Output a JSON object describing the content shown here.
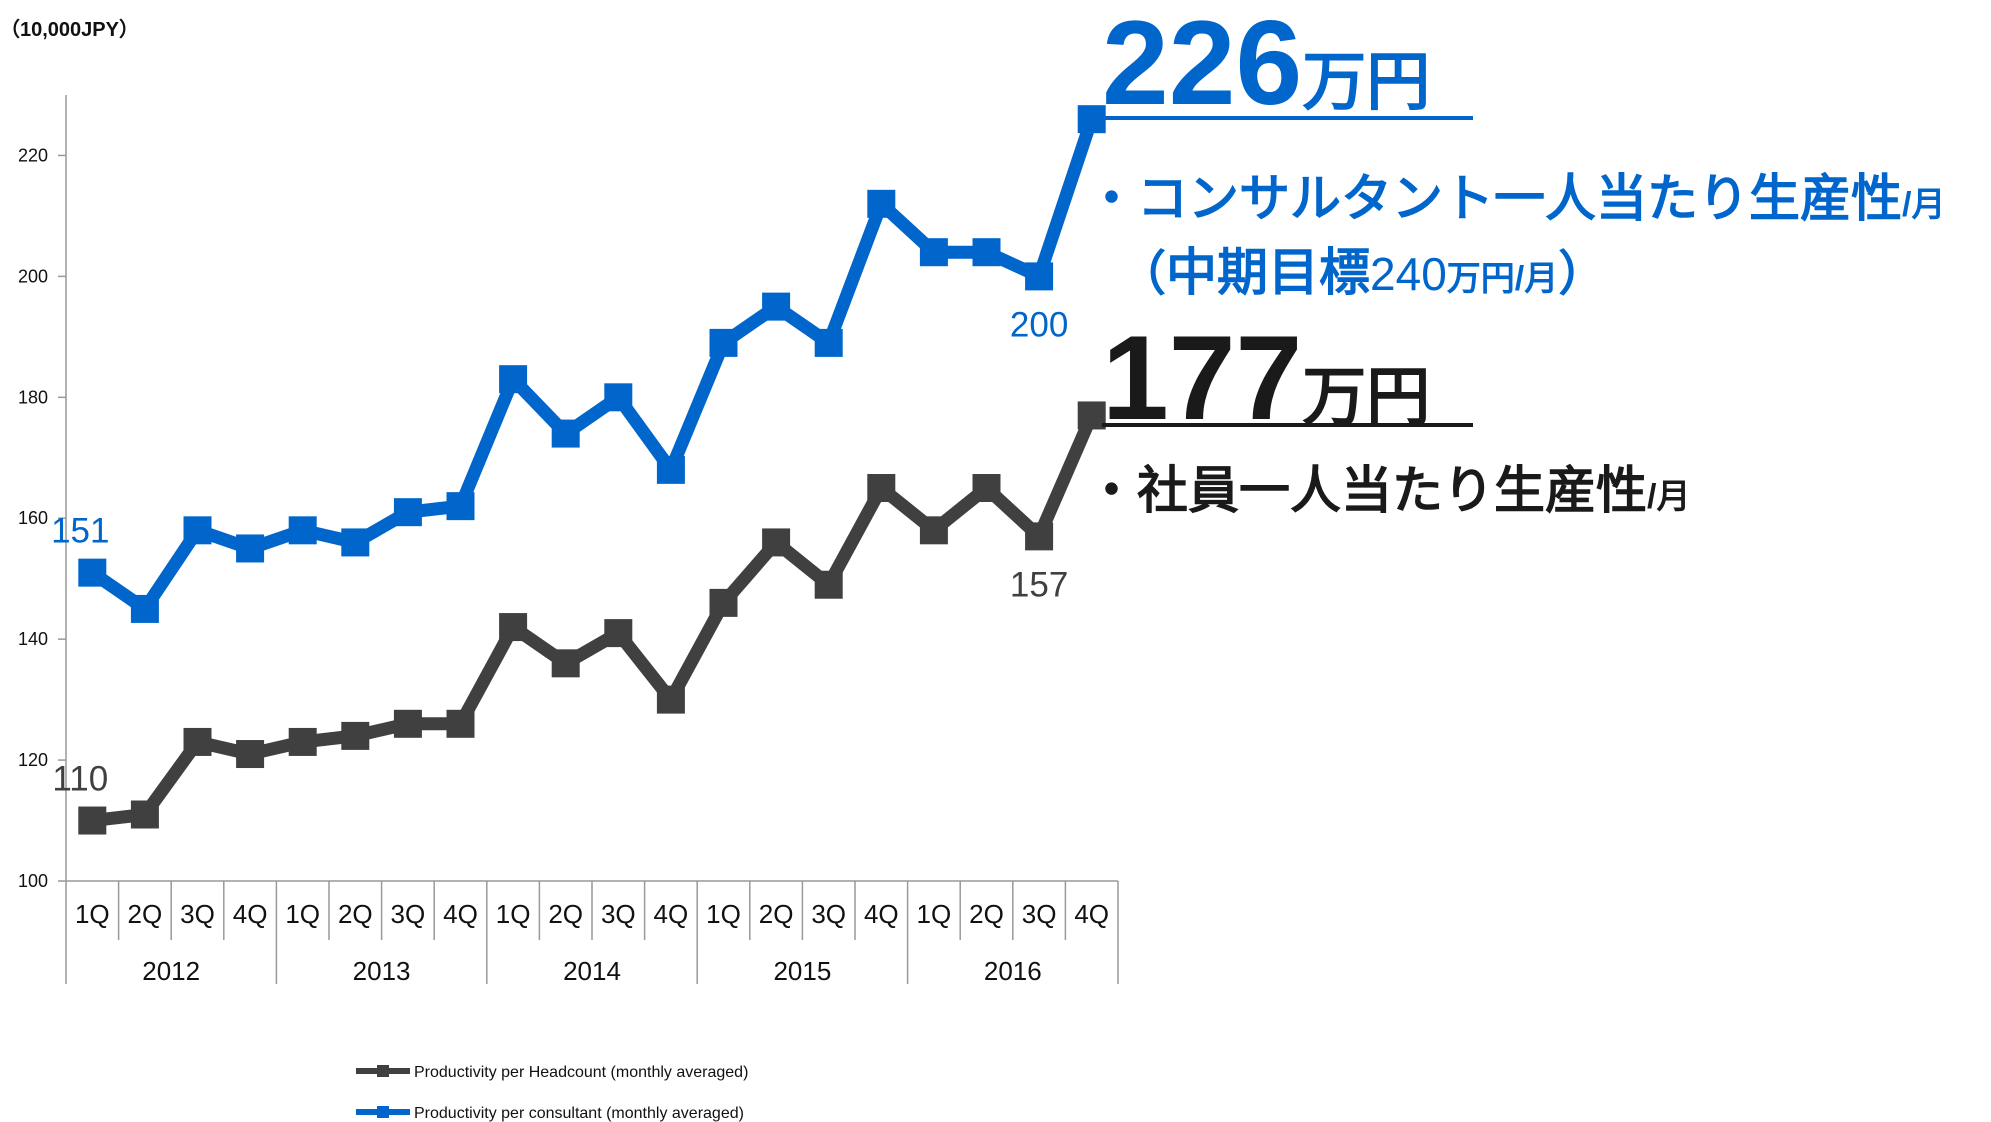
{
  "chart_data": {
    "type": "line",
    "unit_label": "（10,000JPY）",
    "categories": [
      "1Q",
      "2Q",
      "3Q",
      "4Q",
      "1Q",
      "2Q",
      "3Q",
      "4Q",
      "1Q",
      "2Q",
      "3Q",
      "4Q",
      "1Q",
      "2Q",
      "3Q",
      "4Q",
      "1Q",
      "2Q",
      "3Q",
      "4Q"
    ],
    "category_groups": [
      "2012",
      "2013",
      "2014",
      "2015",
      "2016"
    ],
    "ylim": [
      100,
      230
    ],
    "yticks": [
      100,
      120,
      140,
      160,
      180,
      200,
      220
    ],
    "series": [
      {
        "name": "Productivity per Headcount (monthly averaged)",
        "color": "#404040",
        "values": [
          110,
          111,
          123,
          121,
          123,
          124,
          126,
          126,
          142,
          136,
          141,
          130,
          146,
          156,
          149,
          165,
          158,
          165,
          157,
          177
        ],
        "value_labels": [
          "110",
          null,
          null,
          null,
          null,
          null,
          null,
          null,
          null,
          null,
          null,
          null,
          null,
          null,
          null,
          null,
          null,
          null,
          "157",
          null
        ]
      },
      {
        "name": "Productivity per consultant (monthly averaged)",
        "color": "#0066cc",
        "values": [
          151,
          145,
          158,
          155,
          158,
          156,
          161,
          162,
          183,
          174,
          180,
          168,
          189,
          195,
          189,
          212,
          204,
          204,
          200,
          226
        ],
        "value_labels": [
          "151",
          null,
          null,
          null,
          null,
          null,
          null,
          null,
          null,
          null,
          null,
          null,
          null,
          null,
          null,
          null,
          null,
          null,
          "200",
          null
        ]
      }
    ],
    "annotations": [
      {
        "parts": [
          "226",
          "万円"
        ],
        "color": "#0066cc"
      },
      {
        "parts": [
          "・コンサルタント一人当たり生産性",
          "/月"
        ],
        "color": "#0066cc"
      },
      {
        "parts": [
          "（",
          "中期目標",
          "240",
          "万円",
          "/月",
          "）"
        ],
        "color": "#0066cc"
      },
      {
        "parts": [
          "177",
          "万円"
        ],
        "color": "#1a1a1a"
      },
      {
        "parts": [
          "・社員一人当たり生産性",
          "/月"
        ],
        "color": "#1a1a1a"
      }
    ]
  }
}
